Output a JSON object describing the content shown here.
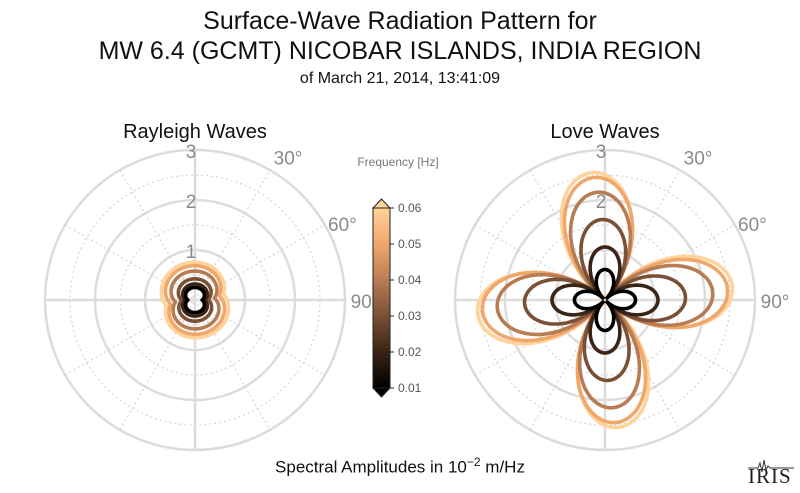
{
  "title": {
    "line1": "Surface-Wave Radiation Pattern for",
    "line2": "MW 6.4 (GCMT) NICOBAR ISLANDS, INDIA REGION",
    "line3": "of March 21, 2014, 13:41:09"
  },
  "footer": {
    "prefix": "Spectral Amplitudes in 10",
    "exponent": "−2",
    "unit": " m/Hz"
  },
  "logo": {
    "text": "IRIS"
  },
  "colorbar": {
    "label": "Frequency [Hz]",
    "ticks": [
      "0.06",
      "0.05",
      "0.04",
      "0.03",
      "0.02",
      "0.01"
    ],
    "min": 0.01,
    "max": 0.06,
    "colors": [
      "#000000",
      "#3a2416",
      "#7a5036",
      "#b87c52",
      "#f0a76b",
      "#ffd39a"
    ]
  },
  "chart_data": [
    {
      "type": "polar-line",
      "title": "Rayleigh Waves",
      "radial_ticks": [
        "1",
        "2",
        "3"
      ],
      "radial_max": 3,
      "angle_ticks": [
        "30°",
        "60°",
        "90°"
      ],
      "grid": true,
      "series": [
        {
          "frequency": 0.01,
          "lobes": 2,
          "amplitude": 0.35,
          "center": 0.1,
          "offset_deg": 90
        },
        {
          "frequency": 0.02,
          "lobes": 2,
          "amplitude": 0.42,
          "center": 0.14,
          "offset_deg": 90
        },
        {
          "frequency": 0.03,
          "lobes": 2,
          "amplitude": 0.52,
          "center": 0.2,
          "offset_deg": 88
        },
        {
          "frequency": 0.04,
          "lobes": 2,
          "amplitude": 0.6,
          "center": 0.32,
          "offset_deg": 84
        },
        {
          "frequency": 0.05,
          "lobes": 2,
          "amplitude": 0.62,
          "center": 0.42,
          "offset_deg": 80
        },
        {
          "frequency": 0.06,
          "lobes": 2,
          "amplitude": 0.55,
          "center": 0.52,
          "offset_deg": 78
        }
      ]
    },
    {
      "type": "polar-line",
      "title": "Love Waves",
      "radial_ticks": [
        "2",
        "3"
      ],
      "radial_max": 3,
      "angle_ticks": [
        "30°",
        "60°",
        "90°"
      ],
      "grid": true,
      "series": [
        {
          "frequency": 0.01,
          "lobes": 4,
          "amplitude": 0.55,
          "offset_deg": 45
        },
        {
          "frequency": 0.02,
          "lobes": 4,
          "amplitude": 1.0,
          "offset_deg": 45
        },
        {
          "frequency": 0.03,
          "lobes": 4,
          "amplitude": 1.55,
          "offset_deg": 43
        },
        {
          "frequency": 0.04,
          "lobes": 4,
          "amplitude": 2.1,
          "offset_deg": 41
        },
        {
          "frequency": 0.05,
          "lobes": 4,
          "amplitude": 2.4,
          "offset_deg": 40
        },
        {
          "frequency": 0.06,
          "lobes": 4,
          "amplitude": 2.5,
          "offset_deg": 39
        }
      ]
    }
  ]
}
